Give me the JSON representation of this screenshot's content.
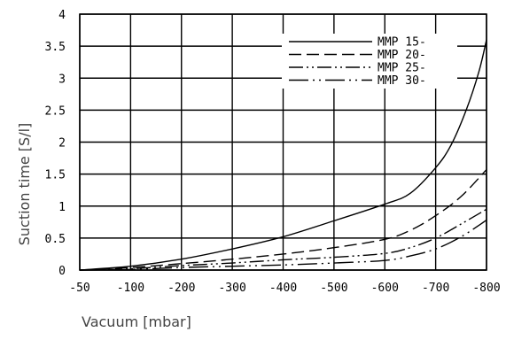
{
  "chart_data": {
    "type": "line",
    "xlabel": "Vacuum [mbar]",
    "ylabel": "Suction time [S/l]",
    "xlim": [
      -50,
      -800
    ],
    "ylim": [
      0,
      4
    ],
    "x_ticks": [
      -50,
      -100,
      -200,
      -300,
      -400,
      -500,
      -600,
      -700,
      -800
    ],
    "y_ticks": [
      0,
      0.5,
      1,
      1.5,
      2,
      2.5,
      3,
      3.5,
      4
    ],
    "x_tick_labels": [
      "-50",
      "-100",
      "-200",
      "-300",
      "-400",
      "-500",
      "-600",
      "-700",
      "-800"
    ],
    "y_tick_labels": [
      "0",
      "0.5",
      "1",
      "1.5",
      "2",
      "2.5",
      "3",
      "3.5",
      "4"
    ],
    "grid": true,
    "legend_position": "top-right",
    "series": [
      {
        "name": "MMP 15-",
        "dash": "solid",
        "points": [
          [
            -50,
            0
          ],
          [
            -100,
            0.06
          ],
          [
            -200,
            0.17
          ],
          [
            -300,
            0.33
          ],
          [
            -400,
            0.52
          ],
          [
            -500,
            0.77
          ],
          [
            -600,
            1.03
          ],
          [
            -650,
            1.2
          ],
          [
            -700,
            1.6
          ],
          [
            -730,
            1.95
          ],
          [
            -760,
            2.5
          ],
          [
            -785,
            3.1
          ],
          [
            -800,
            3.6
          ]
        ]
      },
      {
        "name": "MMP 20-",
        "dash": "dashed",
        "points": [
          [
            -50,
            0
          ],
          [
            -100,
            0.04
          ],
          [
            -200,
            0.1
          ],
          [
            -300,
            0.17
          ],
          [
            -400,
            0.25
          ],
          [
            -500,
            0.35
          ],
          [
            -600,
            0.48
          ],
          [
            -650,
            0.62
          ],
          [
            -700,
            0.85
          ],
          [
            -750,
            1.15
          ],
          [
            -800,
            1.57
          ]
        ]
      },
      {
        "name": "MMP 25-",
        "dash": "dash-dot-dot",
        "points": [
          [
            -50,
            0
          ],
          [
            -100,
            0.02
          ],
          [
            -200,
            0.07
          ],
          [
            -300,
            0.11
          ],
          [
            -400,
            0.16
          ],
          [
            -500,
            0.2
          ],
          [
            -600,
            0.26
          ],
          [
            -650,
            0.35
          ],
          [
            -700,
            0.5
          ],
          [
            -750,
            0.72
          ],
          [
            -800,
            0.95
          ]
        ]
      },
      {
        "name": "MMP 30-",
        "dash": "dash-dot-dot-long",
        "points": [
          [
            -50,
            0
          ],
          [
            -100,
            0.01
          ],
          [
            -200,
            0.04
          ],
          [
            -300,
            0.06
          ],
          [
            -400,
            0.08
          ],
          [
            -500,
            0.11
          ],
          [
            -600,
            0.15
          ],
          [
            -650,
            0.22
          ],
          [
            -700,
            0.33
          ],
          [
            -750,
            0.52
          ],
          [
            -800,
            0.78
          ]
        ]
      }
    ]
  }
}
